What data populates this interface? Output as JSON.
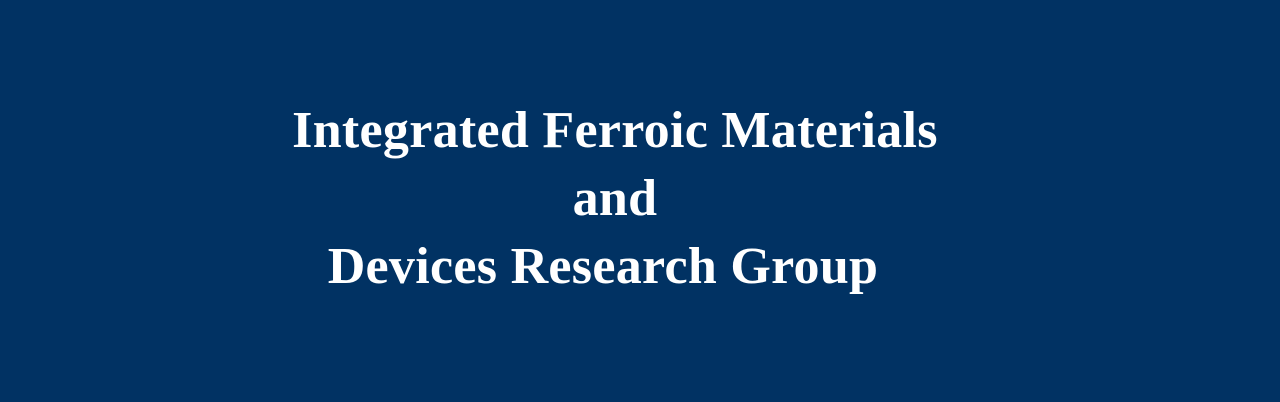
{
  "banner": {
    "background_color": "#013263",
    "text_color": "#ffffff",
    "title_lines": [
      "Integrated Ferroic Materials",
      "and",
      "Devices Research Group"
    ]
  }
}
